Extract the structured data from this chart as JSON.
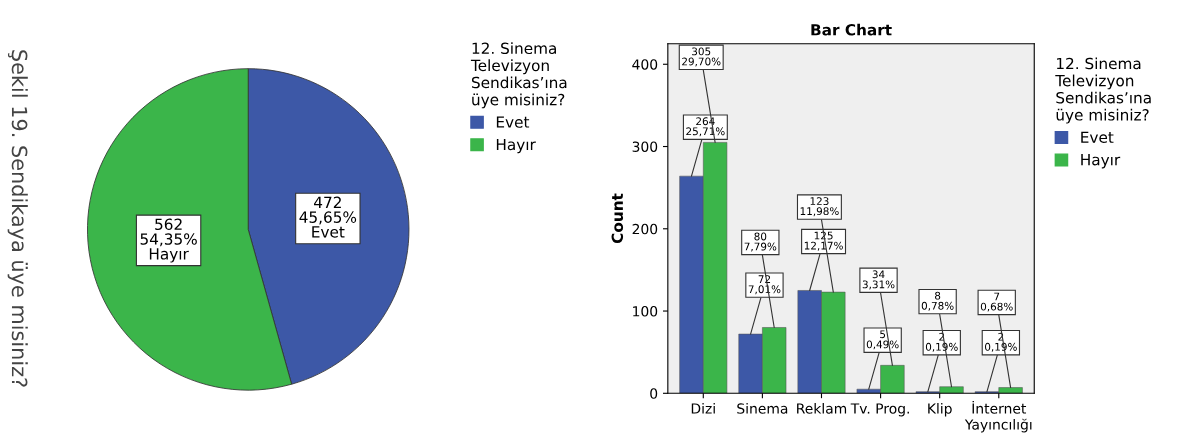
{
  "chart_data": [
    {
      "type": "pie",
      "categories": [
        "Evet",
        "Hayır"
      ],
      "values": [
        472,
        562
      ],
      "colors": [
        "#3d58a7",
        "#3bb54a"
      ],
      "value_labels": [
        "472\n45,65%\nEvet",
        "562\n54,35%\nHayır"
      ],
      "legend_title": "12. Sinema\nTelevizyon\nSendikas’ına\nüye misiniz?",
      "legend": "right",
      "annotations": [
        "Şekil 19. Sendikaya üye misiniz?"
      ]
    },
    {
      "type": "bar",
      "title": "Bar Chart",
      "ylabel": "Count",
      "categories": [
        "Dizi",
        "Sinema",
        "Reklam",
        "Tv. Prog.",
        "Klip",
        "İnternet\nYayıncılığı"
      ],
      "series": [
        {
          "name": "Evet",
          "color": "#3d58a7",
          "values": [
            264,
            72,
            125,
            5,
            2,
            2
          ],
          "value_labels": [
            "264\n25,71%",
            "72\n7,01%",
            "125\n12,17%",
            "5\n0,49%",
            "2\n0,19%",
            "2\n0,19%"
          ]
        },
        {
          "name": "Hayır",
          "color": "#3bb54a",
          "values": [
            305,
            80,
            123,
            34,
            8,
            7
          ],
          "value_labels": [
            "305\n29,70%",
            "80\n7,79%",
            "123\n11,98%",
            "34\n3,31%",
            "8\n0,78%",
            "7\n0,68%"
          ]
        }
      ],
      "ylim": [
        0,
        425
      ],
      "yticks": [
        0,
        100,
        200,
        300,
        400
      ],
      "grid": false,
      "legend": "right",
      "legend_title": "12. Sinema\nTelevizyon\nSendikas’ına\nüye misiniz?"
    }
  ]
}
